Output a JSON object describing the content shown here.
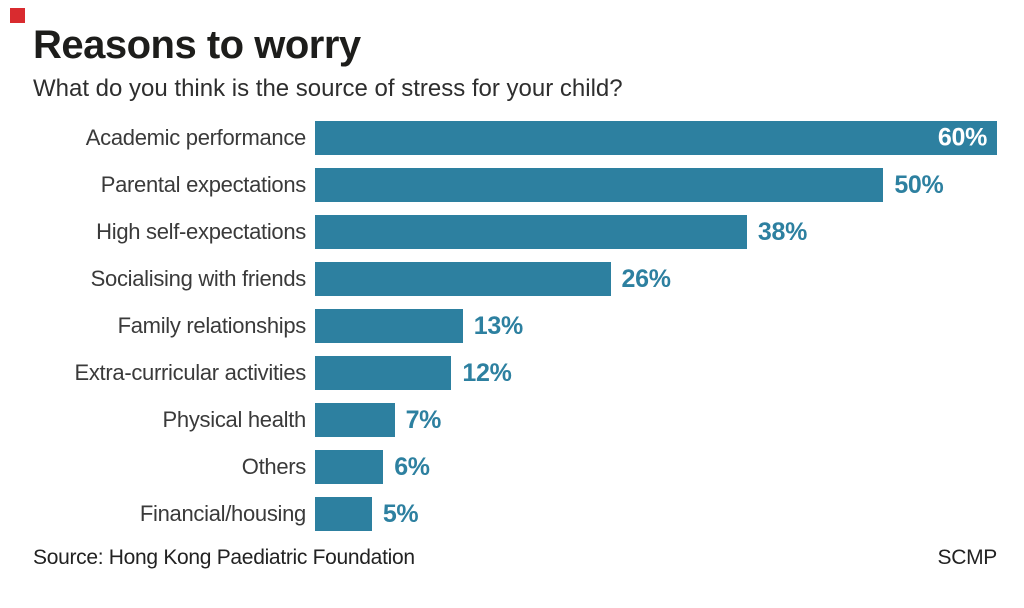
{
  "header": {
    "title": "Reasons to worry",
    "subtitle": "What do you think is the source of stress for your child?",
    "accent_color": "#d92b2f"
  },
  "chart_data": {
    "type": "bar",
    "orientation": "horizontal",
    "title": "Reasons to worry",
    "subtitle": "What do you think is the source of stress for your child?",
    "categories": [
      "Academic performance",
      "Parental expectations",
      "High self-expectations",
      "Socialising with friends",
      "Family relationships",
      "Extra-curricular activities",
      "Physical health",
      "Others",
      "Financial/housing"
    ],
    "values": [
      60,
      50,
      38,
      26,
      13,
      12,
      7,
      6,
      5
    ],
    "value_suffix": "%",
    "xlim": [
      0,
      60
    ],
    "grid": false,
    "legend": false,
    "bar_color": "#2d80a0",
    "value_label_color": "#2d80a0",
    "inside_value_label_color": "#ffffff"
  },
  "footer": {
    "source": "Source: Hong Kong Paediatric Foundation",
    "credit": "SCMP"
  }
}
